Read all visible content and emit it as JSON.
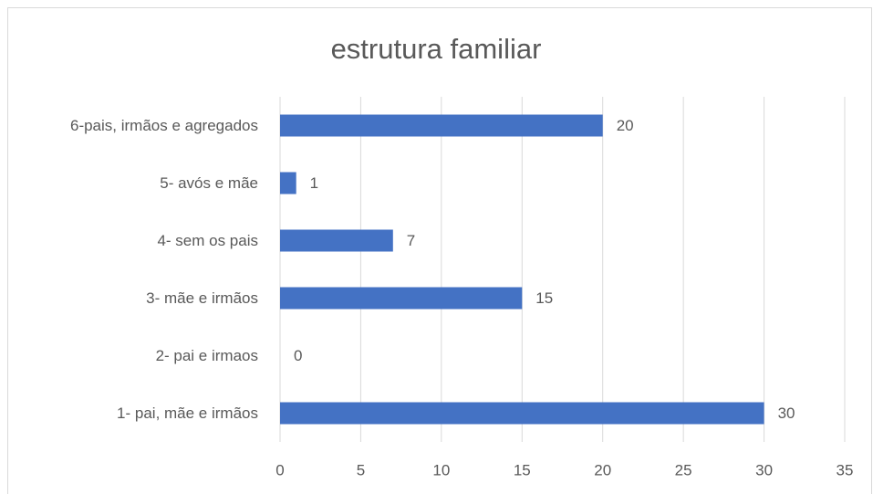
{
  "chart_data": {
    "type": "barh",
    "title": "estrutura familiar",
    "categories": [
      "1- pai, mãe e irmãos",
      "2- pai e irmaos",
      "3- mãe e irmãos",
      "4- sem os pais",
      "5- avós e mãe",
      "6-pais, irmãos e agregados"
    ],
    "values": [
      30,
      0,
      15,
      7,
      1,
      20
    ],
    "color": "#4472c4",
    "xlim": [
      0,
      35
    ],
    "xticks": [
      0,
      5,
      10,
      15,
      20,
      25,
      30,
      35
    ],
    "grid": true
  }
}
